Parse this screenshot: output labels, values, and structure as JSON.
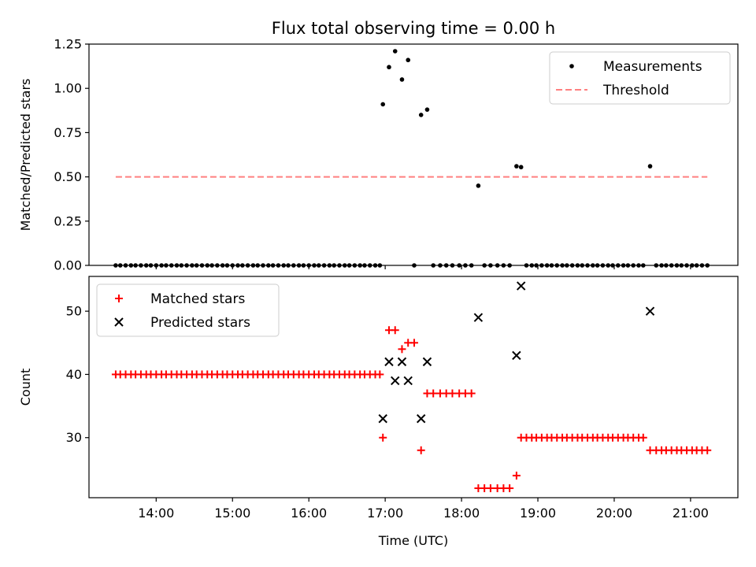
{
  "chart_data": [
    {
      "type": "scatter",
      "title": "Flux total observing time = 0.00 h",
      "xlabel": "",
      "ylabel": "Matched/Predicted stars",
      "xlim": [
        13.12,
        21.62
      ],
      "ylim": [
        0.0,
        1.25
      ],
      "yticks": [
        "0.00",
        "0.25",
        "0.50",
        "0.75",
        "1.00",
        "1.25"
      ],
      "xticks_values": [
        14,
        15,
        16,
        17,
        18,
        19,
        20,
        21
      ],
      "show_x_ticklabels": false,
      "legend_position": "top-right",
      "series": [
        {
          "name": "Measurements",
          "kind": "scatter",
          "marker": "dot",
          "color": "#000000",
          "x": [
            13.47,
            13.53,
            13.6,
            13.67,
            13.73,
            13.8,
            13.87,
            13.93,
            14.0,
            14.07,
            14.13,
            14.2,
            14.27,
            14.33,
            14.4,
            14.47,
            14.53,
            14.6,
            14.67,
            14.73,
            14.8,
            14.87,
            14.93,
            15.0,
            15.07,
            15.13,
            15.2,
            15.27,
            15.33,
            15.4,
            15.47,
            15.53,
            15.6,
            15.67,
            15.73,
            15.8,
            15.87,
            15.93,
            16.0,
            16.07,
            16.13,
            16.2,
            16.27,
            16.33,
            16.4,
            16.47,
            16.53,
            16.6,
            16.67,
            16.73,
            16.8,
            16.87,
            16.93,
            16.97,
            17.05,
            17.13,
            17.22,
            17.3,
            17.38,
            17.47,
            17.55,
            17.63,
            17.72,
            17.8,
            17.88,
            17.97,
            18.05,
            18.13,
            18.22,
            18.3,
            18.38,
            18.47,
            18.55,
            18.63,
            18.72,
            18.78,
            18.85,
            18.92,
            18.98,
            19.05,
            19.12,
            19.18,
            19.25,
            19.32,
            19.38,
            19.45,
            19.52,
            19.58,
            19.65,
            19.72,
            19.78,
            19.85,
            19.92,
            19.98,
            20.05,
            20.12,
            20.18,
            20.25,
            20.32,
            20.38,
            20.47,
            20.55,
            20.62,
            20.68,
            20.75,
            20.82,
            20.88,
            20.95,
            21.02,
            21.08,
            21.15,
            21.22
          ],
          "y": [
            0,
            0,
            0,
            0,
            0,
            0,
            0,
            0,
            0,
            0,
            0,
            0,
            0,
            0,
            0,
            0,
            0,
            0,
            0,
            0,
            0,
            0,
            0,
            0,
            0,
            0,
            0,
            0,
            0,
            0,
            0,
            0,
            0,
            0,
            0,
            0,
            0,
            0,
            0,
            0,
            0,
            0,
            0,
            0,
            0,
            0,
            0,
            0,
            0,
            0,
            0,
            0,
            0,
            0.91,
            1.12,
            1.21,
            1.05,
            1.16,
            0,
            0.85,
            0.88,
            0,
            0,
            0,
            0,
            0,
            0,
            0,
            0.45,
            0,
            0,
            0,
            0,
            0,
            0.56,
            0.555,
            0,
            0,
            0,
            0,
            0,
            0,
            0,
            0,
            0,
            0,
            0,
            0,
            0,
            0,
            0,
            0,
            0,
            0,
            0,
            0,
            0,
            0,
            0,
            0,
            0.56,
            0,
            0,
            0,
            0,
            0,
            0,
            0,
            0,
            0,
            0,
            0
          ]
        },
        {
          "name": "Threshold",
          "kind": "line",
          "dash": true,
          "color": "#ff8080",
          "x": [
            13.47,
            21.22
          ],
          "y": [
            0.5,
            0.5
          ]
        }
      ]
    },
    {
      "type": "scatter",
      "title": "",
      "xlabel": "Time (UTC)",
      "ylabel": "Count",
      "xlim": [
        13.12,
        21.62
      ],
      "ylim": [
        20.5,
        55.5
      ],
      "yticks": [
        "30",
        "40",
        "50"
      ],
      "xticks": [
        "14:00",
        "15:00",
        "16:00",
        "17:00",
        "18:00",
        "19:00",
        "20:00",
        "21:00"
      ],
      "xticks_values": [
        14,
        15,
        16,
        17,
        18,
        19,
        20,
        21
      ],
      "legend_position": "top-left",
      "series": [
        {
          "name": "Matched stars",
          "kind": "scatter",
          "marker": "plus",
          "color": "#ff0000",
          "x": [
            13.47,
            13.53,
            13.6,
            13.67,
            13.73,
            13.8,
            13.87,
            13.93,
            14.0,
            14.07,
            14.13,
            14.2,
            14.27,
            14.33,
            14.4,
            14.47,
            14.53,
            14.6,
            14.67,
            14.73,
            14.8,
            14.87,
            14.93,
            15.0,
            15.07,
            15.13,
            15.2,
            15.27,
            15.33,
            15.4,
            15.47,
            15.53,
            15.6,
            15.67,
            15.73,
            15.8,
            15.87,
            15.93,
            16.0,
            16.07,
            16.13,
            16.2,
            16.27,
            16.33,
            16.4,
            16.47,
            16.53,
            16.6,
            16.67,
            16.73,
            16.8,
            16.87,
            16.93,
            16.97,
            17.05,
            17.13,
            17.22,
            17.3,
            17.38,
            17.47,
            17.55,
            17.63,
            17.72,
            17.8,
            17.88,
            17.97,
            18.05,
            18.13,
            18.22,
            18.3,
            18.38,
            18.47,
            18.55,
            18.63,
            18.72,
            18.78,
            18.85,
            18.92,
            18.98,
            19.05,
            19.12,
            19.18,
            19.25,
            19.32,
            19.38,
            19.45,
            19.52,
            19.58,
            19.65,
            19.72,
            19.78,
            19.85,
            19.92,
            19.98,
            20.05,
            20.12,
            20.18,
            20.25,
            20.32,
            20.38,
            20.47,
            20.55,
            20.62,
            20.68,
            20.75,
            20.82,
            20.88,
            20.95,
            21.02,
            21.08,
            21.15,
            21.22
          ],
          "y": [
            40,
            40,
            40,
            40,
            40,
            40,
            40,
            40,
            40,
            40,
            40,
            40,
            40,
            40,
            40,
            40,
            40,
            40,
            40,
            40,
            40,
            40,
            40,
            40,
            40,
            40,
            40,
            40,
            40,
            40,
            40,
            40,
            40,
            40,
            40,
            40,
            40,
            40,
            40,
            40,
            40,
            40,
            40,
            40,
            40,
            40,
            40,
            40,
            40,
            40,
            40,
            40,
            40,
            30,
            47,
            47,
            44,
            45,
            45,
            28,
            37,
            37,
            37,
            37,
            37,
            37,
            37,
            37,
            22,
            22,
            22,
            22,
            22,
            22,
            24,
            30,
            30,
            30,
            30,
            30,
            30,
            30,
            30,
            30,
            30,
            30,
            30,
            30,
            30,
            30,
            30,
            30,
            30,
            30,
            30,
            30,
            30,
            30,
            30,
            30,
            28,
            28,
            28,
            28,
            28,
            28,
            28,
            28,
            28,
            28,
            28,
            28
          ]
        },
        {
          "name": "Predicted stars",
          "kind": "scatter",
          "marker": "x",
          "color": "#000000",
          "x": [
            16.97,
            17.05,
            17.13,
            17.22,
            17.3,
            17.47,
            17.55,
            18.22,
            18.72,
            18.78,
            20.47
          ],
          "y": [
            33,
            42,
            39,
            42,
            39,
            33,
            42,
            49,
            43,
            54,
            50
          ]
        }
      ]
    }
  ]
}
